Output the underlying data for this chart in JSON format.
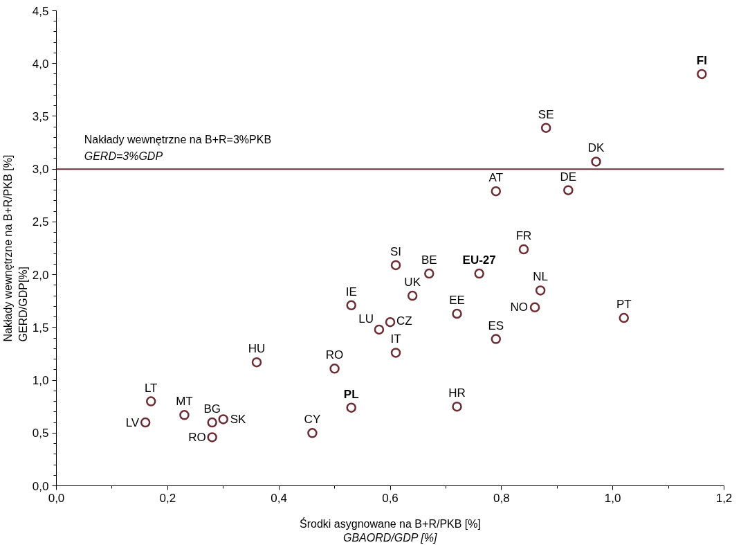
{
  "chart_data": {
    "type": "scatter",
    "xlabel": "Środki asygnowane na B+R/PKB [%]\nGBAORD/GDP [%]",
    "ylabel": "Nakłady wewnętrzne na B+R/PKB [%]\nGERD/GDP[%]",
    "x": [
      1.16,
      0.88,
      0.97,
      0.79,
      0.92,
      0.84,
      0.61,
      0.67,
      0.76,
      0.64,
      0.87,
      0.53,
      0.72,
      0.86,
      1.02,
      0.58,
      0.6,
      0.79,
      0.61,
      0.36,
      0.5,
      0.17,
      0.23,
      0.28,
      0.3,
      0.16,
      0.28,
      0.46,
      0.53,
      0.72
    ],
    "series": [
      {
        "color": "#6b2c33",
        "values": [
          3.9,
          3.39,
          3.07,
          2.79,
          2.8,
          2.24,
          2.09,
          2.01,
          2.01,
          1.8,
          1.85,
          1.71,
          1.63,
          1.69,
          1.59,
          1.48,
          1.55,
          1.39,
          1.26,
          1.17,
          1.11,
          0.8,
          0.67,
          0.6,
          0.63,
          0.6,
          0.46,
          0.5,
          0.74,
          0.75
        ]
      }
    ],
    "annotations": [
      {
        "text": "FI",
        "x": 1.16,
        "y": 3.9
      },
      {
        "text": "SE",
        "x": 0.88,
        "y": 3.39
      },
      {
        "text": "DK",
        "x": 0.97,
        "y": 3.07
      },
      {
        "text": "AT",
        "x": 0.79,
        "y": 2.79
      },
      {
        "text": "DE",
        "x": 0.92,
        "y": 2.8
      },
      {
        "text": "FR",
        "x": 0.84,
        "y": 2.24
      },
      {
        "text": "SI",
        "x": 0.61,
        "y": 2.09
      },
      {
        "text": "BE",
        "x": 0.67,
        "y": 2.01
      },
      {
        "text": "EU-27",
        "x": 0.76,
        "y": 2.01
      },
      {
        "text": "UK",
        "x": 0.64,
        "y": 1.8
      },
      {
        "text": "NL",
        "x": 0.87,
        "y": 1.85
      },
      {
        "text": "IE",
        "x": 0.53,
        "y": 1.71
      },
      {
        "text": "EE",
        "x": 0.72,
        "y": 1.63
      },
      {
        "text": "NO",
        "x": 0.86,
        "y": 1.69
      },
      {
        "text": "PT",
        "x": 1.02,
        "y": 1.59
      },
      {
        "text": "LU",
        "x": 0.58,
        "y": 1.48
      },
      {
        "text": "CZ",
        "x": 0.6,
        "y": 1.55
      },
      {
        "text": "ES",
        "x": 0.79,
        "y": 1.39
      },
      {
        "text": "IT",
        "x": 0.61,
        "y": 1.26
      },
      {
        "text": "HU",
        "x": 0.36,
        "y": 1.17
      },
      {
        "text": "RO",
        "x": 0.5,
        "y": 1.11
      },
      {
        "text": "LT",
        "x": 0.17,
        "y": 0.8
      },
      {
        "text": "MT",
        "x": 0.23,
        "y": 0.67
      },
      {
        "text": "BG",
        "x": 0.28,
        "y": 0.6
      },
      {
        "text": "SK",
        "x": 0.3,
        "y": 0.63
      },
      {
        "text": "LV",
        "x": 0.16,
        "y": 0.6
      },
      {
        "text": "RO",
        "x": 0.28,
        "y": 0.46
      },
      {
        "text": "CY",
        "x": 0.46,
        "y": 0.5
      },
      {
        "text": "PL",
        "x": 0.53,
        "y": 0.74
      },
      {
        "text": "HR",
        "x": 0.72,
        "y": 0.75
      }
    ],
    "ref_lines": [
      {
        "axis": "y",
        "value": 3.0,
        "label": "Nakłady wewnętrzne na B+R=3%PKB\nGERD=3%GDP",
        "color": "#6b2c33"
      }
    ],
    "xlim": [
      0,
      1.2
    ],
    "ylim": [
      0,
      4.5
    ],
    "xticks": [
      {
        "value": 0,
        "label": "0,0"
      },
      {
        "value": 0.2,
        "label": "0,2"
      },
      {
        "value": 0.4,
        "label": "0,4"
      },
      {
        "value": 0.6,
        "label": "0,6"
      },
      {
        "value": 0.8,
        "label": "0,8"
      },
      {
        "value": 1.0,
        "label": "1,0"
      },
      {
        "value": 1.2,
        "label": "1,2"
      }
    ],
    "yticks": [
      {
        "value": 0,
        "label": "0,0"
      },
      {
        "value": 0.5,
        "label": "0,5"
      },
      {
        "value": 1.0,
        "label": "1,0"
      },
      {
        "value": 1.5,
        "label": "1,5"
      },
      {
        "value": 2.0,
        "label": "2,0"
      },
      {
        "value": 2.5,
        "label": "2,5"
      },
      {
        "value": 3.0,
        "label": "3,0"
      },
      {
        "value": 3.5,
        "label": "3,5"
      },
      {
        "value": 4.0,
        "label": "4,0"
      },
      {
        "value": 4.5,
        "label": "4,5"
      }
    ],
    "marker": "circle",
    "grid": false
  }
}
